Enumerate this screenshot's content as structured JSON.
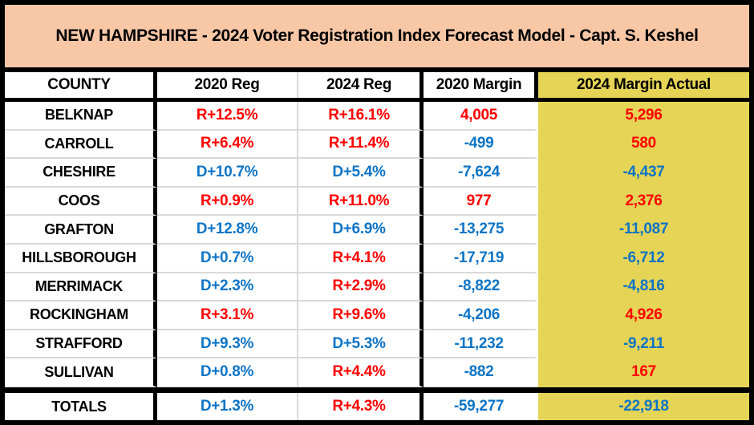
{
  "title": "NEW HAMPSHIRE -  2024 Voter Registration Index Forecast Model - Capt. S. Keshel",
  "colors": {
    "title_bg": "#F7C7A6",
    "highlight_bg": "#E5D455",
    "republican_red": "#FF0000",
    "democrat_blue": "#0D74C6",
    "grid_gray": "#D9D9D9",
    "border_black": "#000000"
  },
  "chart_data": {
    "type": "table",
    "title": "NEW HAMPSHIRE -  2024 Voter Registration Index Forecast Model - Capt. S. Keshel",
    "columns": [
      "COUNTY",
      "2020 Reg",
      "2024 Reg",
      "2020 Margin",
      "2024 Margin Actual"
    ],
    "highlighted_column": "2024 Margin Actual",
    "rows": [
      {
        "county": "BELKNAP",
        "cells": [
          {
            "text": "R+12.5%",
            "party": "r"
          },
          {
            "text": "R+16.1%",
            "party": "r"
          },
          {
            "text": "4,005",
            "party": "r"
          },
          {
            "text": "5,296",
            "party": "r"
          }
        ]
      },
      {
        "county": "CARROLL",
        "cells": [
          {
            "text": "R+6.4%",
            "party": "r"
          },
          {
            "text": "R+11.4%",
            "party": "r"
          },
          {
            "text": "-499",
            "party": "d"
          },
          {
            "text": "580",
            "party": "r"
          }
        ]
      },
      {
        "county": "CHESHIRE",
        "cells": [
          {
            "text": "D+10.7%",
            "party": "d"
          },
          {
            "text": "D+5.4%",
            "party": "d"
          },
          {
            "text": "-7,624",
            "party": "d"
          },
          {
            "text": "-4,437",
            "party": "d"
          }
        ]
      },
      {
        "county": "COOS",
        "cells": [
          {
            "text": "R+0.9%",
            "party": "r"
          },
          {
            "text": "R+11.0%",
            "party": "r"
          },
          {
            "text": "977",
            "party": "r"
          },
          {
            "text": "2,376",
            "party": "r"
          }
        ]
      },
      {
        "county": "GRAFTON",
        "cells": [
          {
            "text": "D+12.8%",
            "party": "d"
          },
          {
            "text": "D+6.9%",
            "party": "d"
          },
          {
            "text": "-13,275",
            "party": "d"
          },
          {
            "text": "-11,087",
            "party": "d"
          }
        ]
      },
      {
        "county": "HILLSBOROUGH",
        "cells": [
          {
            "text": "D+0.7%",
            "party": "d"
          },
          {
            "text": "R+4.1%",
            "party": "r"
          },
          {
            "text": "-17,719",
            "party": "d"
          },
          {
            "text": "-6,712",
            "party": "d"
          }
        ]
      },
      {
        "county": "MERRIMACK",
        "cells": [
          {
            "text": "D+2.3%",
            "party": "d"
          },
          {
            "text": "R+2.9%",
            "party": "r"
          },
          {
            "text": "-8,822",
            "party": "d"
          },
          {
            "text": "-4,816",
            "party": "d"
          }
        ]
      },
      {
        "county": "ROCKINGHAM",
        "cells": [
          {
            "text": "R+3.1%",
            "party": "r"
          },
          {
            "text": "R+9.6%",
            "party": "r"
          },
          {
            "text": "-4,206",
            "party": "d"
          },
          {
            "text": "4,926",
            "party": "r"
          }
        ]
      },
      {
        "county": "STRAFFORD",
        "cells": [
          {
            "text": "D+9.3%",
            "party": "d"
          },
          {
            "text": "D+5.3%",
            "party": "d"
          },
          {
            "text": "-11,232",
            "party": "d"
          },
          {
            "text": "-9,211",
            "party": "d"
          }
        ]
      },
      {
        "county": "SULLIVAN",
        "cells": [
          {
            "text": "D+0.8%",
            "party": "d"
          },
          {
            "text": "R+4.4%",
            "party": "r"
          },
          {
            "text": "-882",
            "party": "d"
          },
          {
            "text": "167",
            "party": "r"
          }
        ]
      }
    ],
    "totals": {
      "county": "TOTALS",
      "cells": [
        {
          "text": "D+1.3%",
          "party": "d"
        },
        {
          "text": "R+4.3%",
          "party": "r"
        },
        {
          "text": "-59,277",
          "party": "d"
        },
        {
          "text": "-22,918",
          "party": "d"
        }
      ]
    }
  }
}
